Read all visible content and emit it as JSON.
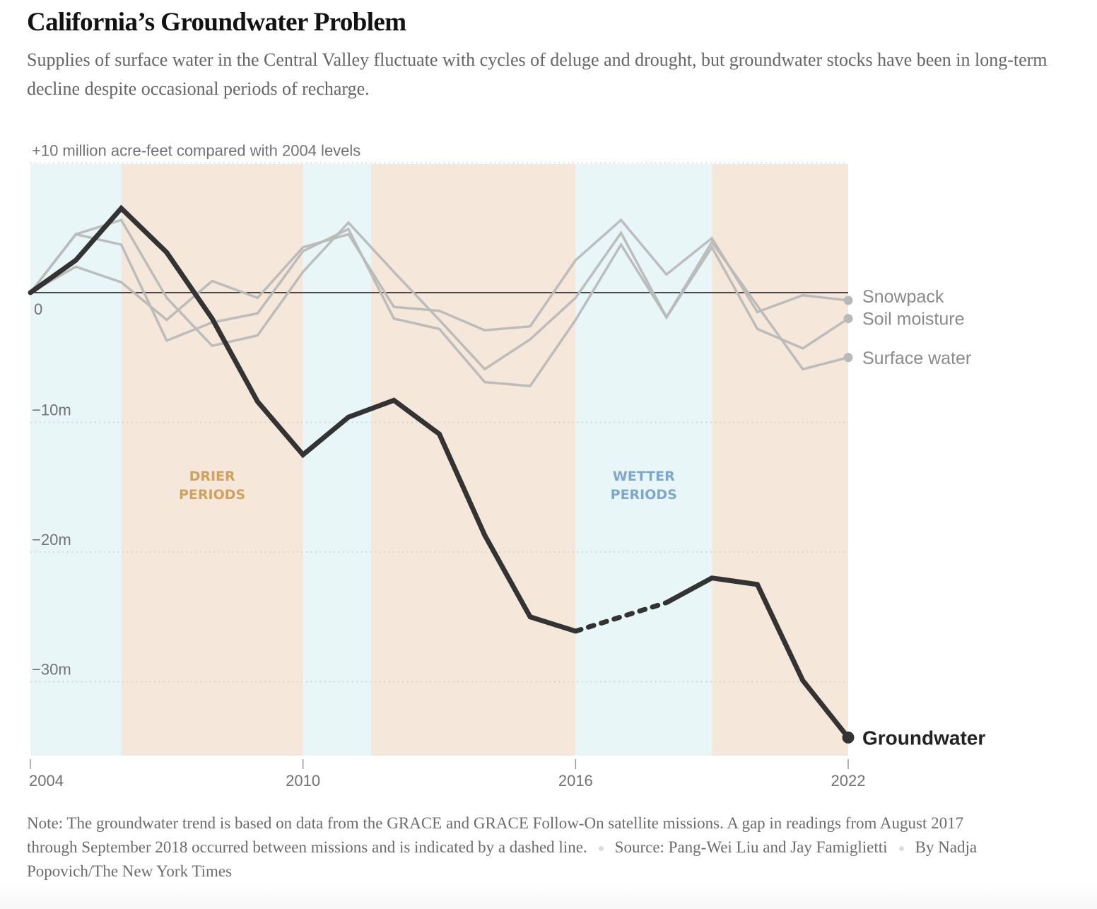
{
  "header": {
    "title": "California’s Groundwater Problem",
    "subtitle": "Supplies of surface water in the Central Valley fluctuate with cycles of deluge and drought, but groundwater stocks have been in long-term decline despite occasional periods of recharge."
  },
  "footer": {
    "note": "Note: The groundwater trend is based on data from the GRACE and GRACE Follow-On satellite missions. A gap in readings from August 2017 through September 2018 occurred between missions and is indicated by a dashed line.",
    "source": "Source: Pang-Wei Liu and Jay Famiglietti",
    "byline": "By Nadja Popovich/The New York Times"
  },
  "colors": {
    "wet_band": "#e8f6f8",
    "dry_band": "#f5e8da",
    "groundwater": "#333333",
    "other_series": "#b9b9b9",
    "drier_label": "#cfa260",
    "wetter_label": "#7ea8c9",
    "zero_line": "#111111",
    "grid": "#bfc7c9"
  },
  "chart_data": {
    "type": "line",
    "title": "California’s Groundwater Problem",
    "ylabel": "million acre-feet compared with 2004 levels",
    "xlabel": "",
    "x": [
      2004,
      2005,
      2006,
      2007,
      2008,
      2009,
      2010,
      2011,
      2012,
      2013,
      2014,
      2015,
      2016,
      2017,
      2018,
      2019,
      2020,
      2021,
      2022
    ],
    "xlim": [
      2004,
      2022
    ],
    "ylim": [
      -35.5,
      10
    ],
    "x_ticks": [
      {
        "value": 2004,
        "label": "2004"
      },
      {
        "value": 2010,
        "label": "2010"
      },
      {
        "value": 2016,
        "label": "2016"
      },
      {
        "value": 2022,
        "label": "2022"
      }
    ],
    "y_ticks": [
      {
        "value": 10,
        "label": "+10 million acre-feet compared with 2004 levels"
      },
      {
        "value": 0,
        "label": "0"
      },
      {
        "value": -10,
        "label": "−10m"
      },
      {
        "value": -20,
        "label": "−20m"
      },
      {
        "value": -30,
        "label": "−30m"
      }
    ],
    "grid": true,
    "series": [
      {
        "name": "Snowpack",
        "emphasis": false,
        "values": [
          0,
          2.0,
          0.8,
          -2.1,
          0.9,
          -0.4,
          3.5,
          4.5,
          -1.1,
          -1.4,
          -2.9,
          -2.6,
          2.5,
          5.6,
          1.4,
          4.2,
          -1.5,
          -0.2,
          -0.6
        ]
      },
      {
        "name": "Soil moisture",
        "emphasis": false,
        "values": [
          0,
          4.5,
          3.7,
          -3.7,
          -2.3,
          -1.6,
          3.2,
          4.9,
          -2.0,
          -2.8,
          -6.9,
          -7.2,
          -2.1,
          3.7,
          -1.9,
          3.5,
          -2.8,
          -4.3,
          -2.0
        ]
      },
      {
        "name": "Surface water",
        "emphasis": false,
        "values": [
          0,
          4.5,
          5.6,
          -0.4,
          -4.1,
          -3.3,
          1.6,
          5.4,
          1.6,
          -2.1,
          -5.9,
          -3.6,
          -0.4,
          4.6,
          -1.9,
          3.9,
          -1.0,
          -5.9,
          -5.0
        ]
      },
      {
        "name": "Groundwater",
        "emphasis": true,
        "values": [
          0,
          2.5,
          6.5,
          3.1,
          -2.0,
          -8.4,
          -12.5,
          -9.6,
          -8.3,
          -10.9,
          -18.7,
          -25.0,
          -26.1,
          null,
          -23.9,
          -22.0,
          -22.5,
          -29.9,
          -34.3
        ],
        "gap": {
          "from": 2016,
          "to": 2018,
          "style": "dashed"
        }
      }
    ],
    "bands": [
      {
        "from": 2004,
        "to": 2006,
        "type": "wet"
      },
      {
        "from": 2006,
        "to": 2010,
        "type": "dry"
      },
      {
        "from": 2010,
        "to": 2011.5,
        "type": "wet"
      },
      {
        "from": 2011.5,
        "to": 2016,
        "type": "dry"
      },
      {
        "from": 2016,
        "to": 2019,
        "type": "wet"
      },
      {
        "from": 2019,
        "to": 2022,
        "type": "dry"
      }
    ],
    "annotations": [
      {
        "id": "drier",
        "lines": [
          "DRIER",
          "PERIODS"
        ],
        "x": 2008,
        "y": -14.5,
        "type": "dry"
      },
      {
        "id": "wetter",
        "lines": [
          "WETTER",
          "PERIODS"
        ],
        "x": 2017.5,
        "y": -14.5,
        "type": "wet"
      }
    ],
    "legend": "direct-labels-right"
  }
}
